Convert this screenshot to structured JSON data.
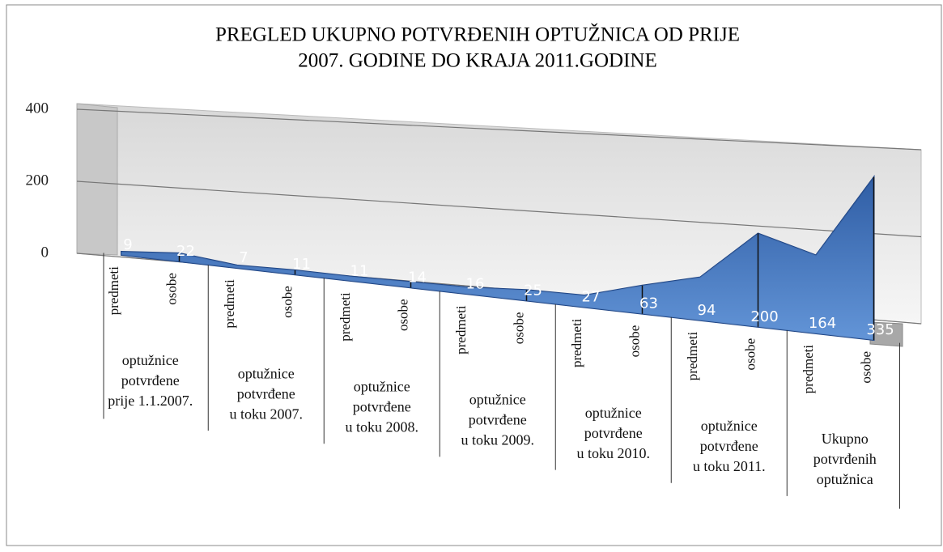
{
  "chart_data": {
    "type": "area",
    "title": [
      "PREGLED UKUPNO POTVRĐENIH OPTUŽNICA OD  PRIJE",
      "2007. GODINE DO KRAJA 2011.GODINE"
    ],
    "categories": [
      "predmeti",
      "osobe",
      "predmeti",
      "osobe",
      "predmeti",
      "osobe",
      "predmeti",
      "osobe",
      "predmeti",
      "osobe",
      "predmeti",
      "osobe",
      "predmeti",
      "osobe"
    ],
    "groups": [
      [
        "optužnice",
        "potvrđene",
        "prije 1.1.2007."
      ],
      [
        "optužnice",
        "potvrđene",
        "u toku 2007."
      ],
      [
        "optužnice",
        "potvrđene",
        "u toku 2008."
      ],
      [
        "optužnice",
        "potvrđene",
        "u toku 2009."
      ],
      [
        "optužnice",
        "potvrđene",
        "u toku 2010."
      ],
      [
        "optužnice",
        "potvrđene",
        "u toku 2011."
      ],
      [
        "Ukupno",
        "potvrđenih",
        "optužnica"
      ]
    ],
    "values": [
      9,
      22,
      7,
      11,
      11,
      14,
      16,
      25,
      27,
      63,
      94,
      200,
      164,
      335
    ],
    "color": "#3a6cb8",
    "ylim": [
      0,
      400
    ],
    "yticks": [
      0,
      200,
      400
    ],
    "grid": true
  }
}
